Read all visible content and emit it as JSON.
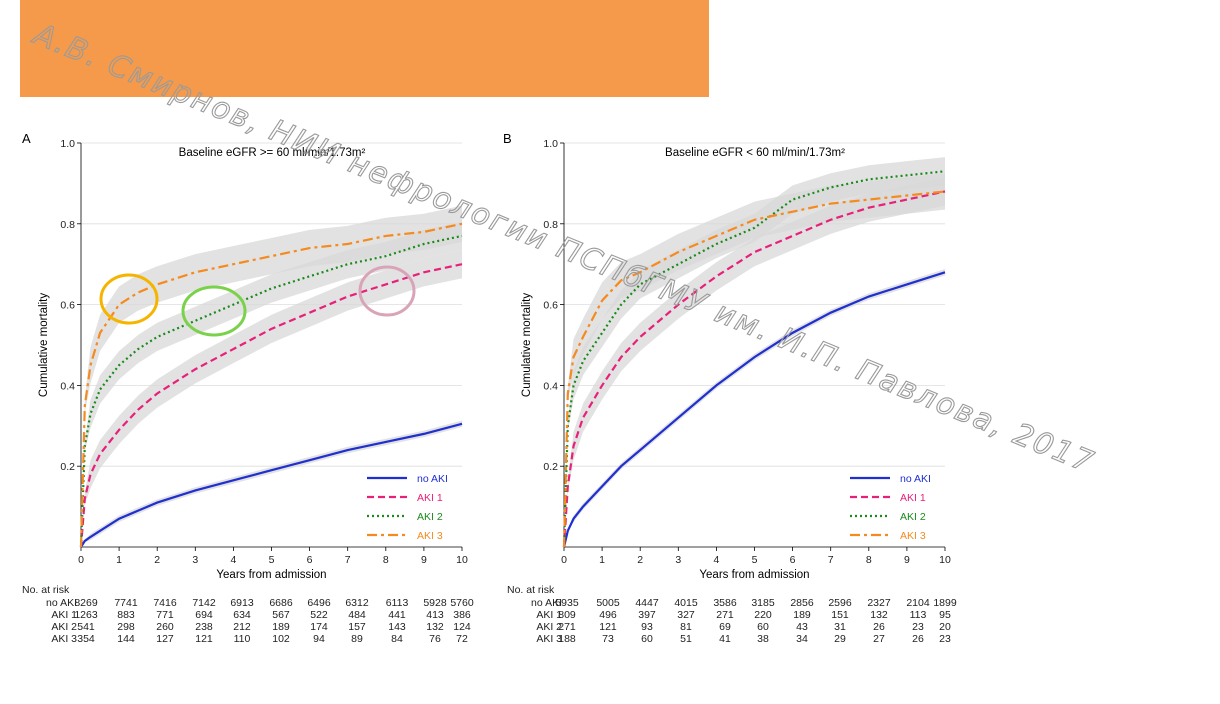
{
  "watermark": "А.В. Смирнов, НИИ нефрологии ПСПбГМУ им. И.П. Павлова, 2017",
  "colors": {
    "banner": "#f59a4b",
    "no_aki": "#1f2fd0",
    "aki1": "#e8207a",
    "aki2": "#1a8a1a",
    "aki3": "#f58a1e",
    "band": "#d8d8d8",
    "ellipse_yellow": "#f5b400",
    "ellipse_green": "#7ad14a",
    "ellipse_pink": "#d9a3b8"
  },
  "risk_table_header": "No. at risk",
  "x_ticks": [
    "0",
    "1",
    "2",
    "3",
    "4",
    "5",
    "6",
    "7",
    "8",
    "9",
    "10"
  ],
  "y_ticks": [
    "0.2",
    "0.4",
    "0.6",
    "0.8",
    "1.0"
  ],
  "chart_data": [
    {
      "type": "line",
      "panel": "A",
      "title": "Baseline eGFR >= 60 ml/min/1.73m²",
      "xlabel": "Years from admission",
      "ylabel": "Cumulative mortality",
      "xlim": [
        0,
        10
      ],
      "ylim": [
        0,
        1.0
      ],
      "x": [
        0,
        0.1,
        0.25,
        0.5,
        1,
        1.5,
        2,
        3,
        4,
        5,
        6,
        7,
        8,
        9,
        10
      ],
      "series": [
        {
          "name": "no AKI",
          "key": "no_aki",
          "style": "solid",
          "values": [
            0,
            0.015,
            0.025,
            0.04,
            0.07,
            0.09,
            0.11,
            0.14,
            0.165,
            0.19,
            0.215,
            0.24,
            0.26,
            0.28,
            0.305
          ]
        },
        {
          "name": "AKI 1",
          "key": "aki1",
          "style": "dash",
          "values": [
            0,
            0.12,
            0.18,
            0.23,
            0.29,
            0.34,
            0.38,
            0.44,
            0.49,
            0.54,
            0.58,
            0.62,
            0.65,
            0.68,
            0.7
          ]
        },
        {
          "name": "AKI 2",
          "key": "aki2",
          "style": "dot",
          "values": [
            0,
            0.25,
            0.33,
            0.39,
            0.45,
            0.49,
            0.52,
            0.56,
            0.6,
            0.64,
            0.67,
            0.7,
            0.72,
            0.75,
            0.77
          ]
        },
        {
          "name": "AKI 3",
          "key": "aki3",
          "style": "dashdot",
          "values": [
            0,
            0.35,
            0.45,
            0.53,
            0.6,
            0.63,
            0.65,
            0.68,
            0.7,
            0.72,
            0.74,
            0.75,
            0.77,
            0.78,
            0.8
          ]
        }
      ],
      "risk_table": [
        {
          "label": "no AKI",
          "values": [
            "8269",
            "7741",
            "7416",
            "7142",
            "6913",
            "6686",
            "6496",
            "6312",
            "6113",
            "5928",
            "5760"
          ]
        },
        {
          "label": "AKI 1",
          "values": [
            "1263",
            "883",
            "771",
            "694",
            "634",
            "567",
            "522",
            "484",
            "441",
            "413",
            "386"
          ]
        },
        {
          "label": "AKI 2",
          "values": [
            "541",
            "298",
            "260",
            "238",
            "212",
            "189",
            "174",
            "157",
            "143",
            "132",
            "124"
          ]
        },
        {
          "label": "AKI 3",
          "values": [
            "354",
            "144",
            "127",
            "121",
            "110",
            "102",
            "94",
            "89",
            "84",
            "76",
            "72"
          ]
        }
      ]
    },
    {
      "type": "line",
      "panel": "B",
      "title": "Baseline eGFR < 60 ml/min/1.73m²",
      "xlabel": "Years from admission",
      "ylabel": "Cumulative mortality",
      "xlim": [
        0,
        10
      ],
      "ylim": [
        0,
        1.0
      ],
      "x": [
        0,
        0.1,
        0.25,
        0.5,
        1,
        1.5,
        2,
        3,
        4,
        5,
        6,
        7,
        8,
        9,
        10
      ],
      "series": [
        {
          "name": "no AKI",
          "key": "no_aki",
          "style": "solid",
          "values": [
            0,
            0.04,
            0.07,
            0.1,
            0.15,
            0.2,
            0.24,
            0.32,
            0.4,
            0.47,
            0.53,
            0.58,
            0.62,
            0.65,
            0.68
          ]
        },
        {
          "name": "AKI 1",
          "key": "aki1",
          "style": "dash",
          "values": [
            0,
            0.15,
            0.25,
            0.32,
            0.4,
            0.47,
            0.52,
            0.6,
            0.67,
            0.73,
            0.77,
            0.81,
            0.84,
            0.86,
            0.88
          ]
        },
        {
          "name": "AKI 2",
          "key": "aki2",
          "style": "dot",
          "values": [
            0,
            0.3,
            0.4,
            0.46,
            0.53,
            0.6,
            0.65,
            0.7,
            0.75,
            0.79,
            0.86,
            0.89,
            0.91,
            0.92,
            0.93
          ]
        },
        {
          "name": "AKI 3",
          "key": "aki3",
          "style": "dashdot",
          "values": [
            0,
            0.38,
            0.47,
            0.52,
            0.61,
            0.66,
            0.68,
            0.73,
            0.77,
            0.81,
            0.83,
            0.85,
            0.86,
            0.87,
            0.88
          ]
        }
      ],
      "risk_table": [
        {
          "label": "no AKI",
          "values": [
            "5935",
            "5005",
            "4447",
            "4015",
            "3586",
            "3185",
            "2856",
            "2596",
            "2327",
            "2104",
            "1899"
          ]
        },
        {
          "label": "AKI 1",
          "values": [
            "809",
            "496",
            "397",
            "327",
            "271",
            "220",
            "189",
            "151",
            "132",
            "113",
            "95"
          ]
        },
        {
          "label": "AKI 2",
          "values": [
            "271",
            "121",
            "93",
            "81",
            "69",
            "60",
            "43",
            "31",
            "26",
            "23",
            "20"
          ]
        },
        {
          "label": "AKI 3",
          "values": [
            "188",
            "73",
            "60",
            "51",
            "41",
            "38",
            "34",
            "29",
            "27",
            "26",
            "23"
          ]
        }
      ]
    }
  ]
}
